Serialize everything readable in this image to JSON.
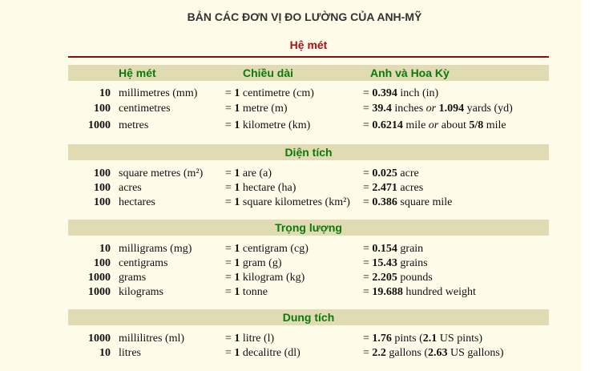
{
  "title": "BẢN CÁC ĐƠN VỊ ĐO LƯỜNG CỦA ANH-MỸ",
  "system_heading": "Hệ mét",
  "columns": {
    "metric": "Hệ mét",
    "length": "Chiều dài",
    "imperial": "Anh và Hoa Kỳ"
  },
  "sections": [
    {
      "rows": [
        {
          "qty": "10",
          "unit": "millimetres (mm)",
          "eq_prefix": "= ",
          "eq_num": "1",
          "eq_unit": " centimetre (cm)",
          "res_prefix": "= ",
          "res_num": "0.394",
          "res_unit": " inch (in)"
        },
        {
          "qty": "100",
          "unit": "centimetres",
          "eq_prefix": "= ",
          "eq_num": "1",
          "eq_unit": " metre (m)",
          "res_prefix": "= ",
          "res_num": "39.4",
          "res_unit": " inches ",
          "res_or": "or",
          "res_num2": "1.094",
          "res_unit2": " yards (yd)"
        },
        {
          "qty": "1000",
          "unit": "metres",
          "eq_prefix": "= ",
          "eq_num": "1",
          "eq_unit": " kilometre (km)",
          "res_prefix": "= ",
          "res_num": "0.6214",
          "res_unit": " mile ",
          "res_or": "or",
          "res_mid": " about ",
          "res_num2": "5/8",
          "res_unit2": " mile"
        }
      ]
    },
    {
      "heading": "Diện tích",
      "rows": [
        {
          "qty": "100",
          "unit": "square metres (m²)",
          "eq_prefix": "= ",
          "eq_num": "1",
          "eq_unit": " are (a)",
          "res_prefix": "= ",
          "res_num": "0.025",
          "res_unit": " acre"
        },
        {
          "qty": "100",
          "unit": "acres",
          "eq_prefix": "= ",
          "eq_num": "1",
          "eq_unit": " hectare (ha)",
          "res_prefix": "= ",
          "res_num": "2.471",
          "res_unit": " acres"
        },
        {
          "qty": "100",
          "unit": "hectares",
          "eq_prefix": "= ",
          "eq_num": "1",
          "eq_unit": " square kilometres (km²)",
          "res_prefix": "= ",
          "res_num": "0.386",
          "res_unit": " square mile"
        }
      ]
    },
    {
      "heading": "Trọng lượng",
      "rows": [
        {
          "qty": "10",
          "unit": "milligrams (mg)",
          "eq_prefix": "= ",
          "eq_num": "1",
          "eq_unit": " centigram (cg)",
          "res_prefix": "= ",
          "res_num": "0.154",
          "res_unit": " grain"
        },
        {
          "qty": "100",
          "unit": "centigrams",
          "eq_prefix": "= ",
          "eq_num": "1",
          "eq_unit": " gram (g)",
          "res_prefix": "= ",
          "res_num": "15.43",
          "res_unit": " grains"
        },
        {
          "qty": "1000",
          "unit": "grams",
          "eq_prefix": "= ",
          "eq_num": "1",
          "eq_unit": " kilogram (kg)",
          "res_prefix": "= ",
          "res_num": "2.205",
          "res_unit": " pounds"
        },
        {
          "qty": "1000",
          "unit": "kilograms",
          "eq_prefix": "= ",
          "eq_num": "1",
          "eq_unit": " tonne",
          "res_prefix": "= ",
          "res_num": "19.688",
          "res_unit": " hundred weight"
        }
      ]
    },
    {
      "heading": "Dung tích",
      "rows": [
        {
          "qty": "1000",
          "unit": "millilitres (ml)",
          "eq_prefix": "= ",
          "eq_num": "1",
          "eq_unit": " litre (l)",
          "res_prefix": "= ",
          "res_num": "1.76",
          "res_unit": " pints (",
          "res_num2": "2.1",
          "res_unit2": " US pints)"
        },
        {
          "qty": "10",
          "unit": "litres",
          "eq_prefix": "= ",
          "eq_num": "1",
          "eq_unit": " decalitre (dl)",
          "res_prefix": "= ",
          "res_num": "2.2",
          "res_unit": " gallons (",
          "res_num2": "2.63",
          "res_unit2": " US gallons)"
        }
      ]
    }
  ],
  "colors": {
    "background": "#fffbe9",
    "band": "#e0dbb2",
    "heading_green": "#0b7a0b",
    "heading_red": "#a0141e",
    "rule": "#8b0d10"
  }
}
